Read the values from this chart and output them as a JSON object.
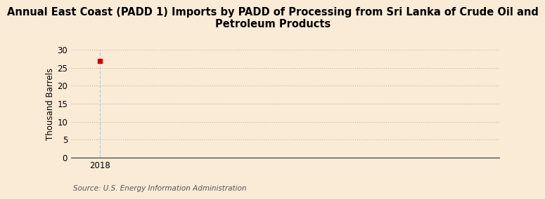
{
  "title": "Annual East Coast (PADD 1) Imports by PADD of Processing from Sri Lanka of Crude Oil and\nPetroleum Products",
  "ylabel": "Thousand Barrels",
  "source": "Source: U.S. Energy Information Administration",
  "background_color": "#faebd7",
  "plot_bg_color": "#fdf5e6",
  "data_x": [
    2018
  ],
  "data_y": [
    27
  ],
  "marker_color": "#cc0000",
  "xlim": [
    2017.6,
    2023.5
  ],
  "ylim": [
    0,
    30
  ],
  "yticks": [
    0,
    5,
    10,
    15,
    20,
    25,
    30
  ],
  "xticks": [
    2018
  ],
  "grid_color": "#c8b8a0",
  "grid_linestyle": ":",
  "vline_color": "#b8ccd8",
  "title_fontsize": 10.5,
  "ylabel_fontsize": 8.5,
  "tick_fontsize": 8.5,
  "source_fontsize": 7.5
}
